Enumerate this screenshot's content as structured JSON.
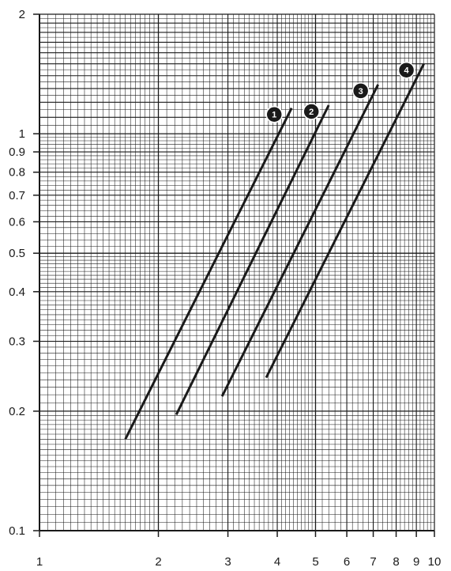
{
  "chart_data": {
    "type": "line",
    "title": "",
    "xlabel": "",
    "ylabel": "",
    "xscale": "log",
    "yscale": "log",
    "xlim": [
      1,
      10
    ],
    "ylim": [
      0.1,
      2
    ],
    "grid": true,
    "legend": "inline numbered badges at the upper end of each line",
    "x_tick_labels": [
      "1",
      "2",
      "3",
      "4",
      "5",
      "6",
      "7",
      "8",
      "9",
      "10"
    ],
    "y_tick_labels": [
      "0.1",
      "0.2",
      "0.3",
      "0.4",
      "0.5",
      "0.6",
      "0.7",
      "0.8",
      "0.9",
      "1",
      "2"
    ],
    "series": [
      {
        "name": "1",
        "color": "#1a1a1a",
        "x": [
          1.65,
          4.35
        ],
        "y": [
          0.17,
          1.16
        ]
      },
      {
        "name": "2",
        "color": "#1a1a1a",
        "x": [
          2.22,
          5.4
        ],
        "y": [
          0.196,
          1.18
        ]
      },
      {
        "name": "3",
        "color": "#1a1a1a",
        "x": [
          2.9,
          7.2
        ],
        "y": [
          0.218,
          1.33
        ]
      },
      {
        "name": "4",
        "color": "#1a1a1a",
        "x": [
          3.75,
          9.4
        ],
        "y": [
          0.243,
          1.5
        ]
      }
    ]
  },
  "colors": {
    "line": "#1a1a1a",
    "grid": "#1a1a1a",
    "background": "#ffffff"
  }
}
